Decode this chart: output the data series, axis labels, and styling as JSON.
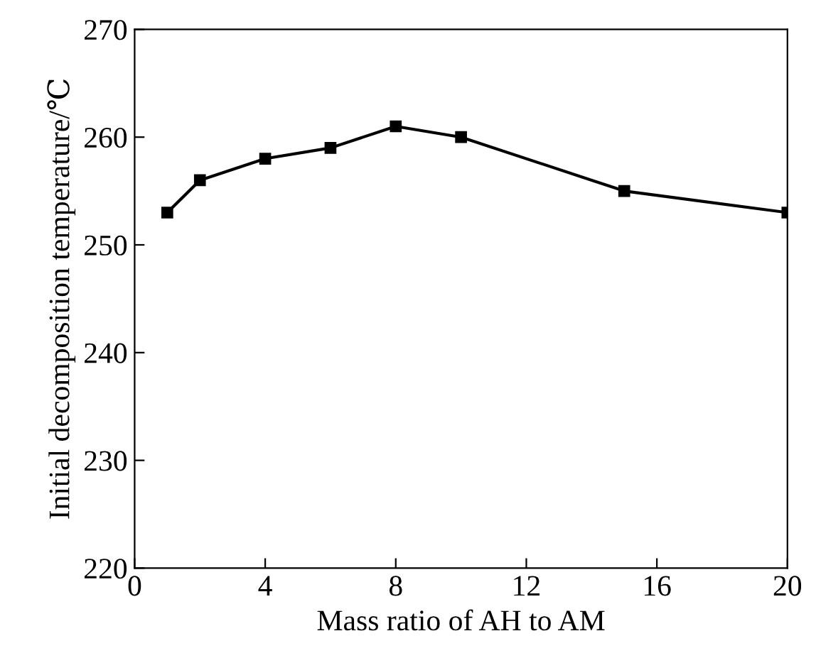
{
  "chart_data": {
    "type": "line",
    "xlabel": "Mass ratio of AH to AM",
    "ylabel": "Initial decomposition temperature/℃",
    "x": [
      1,
      2,
      4,
      6,
      8,
      10,
      15,
      20
    ],
    "series": [
      {
        "color": "#000000",
        "values": [
          253,
          256,
          258,
          259,
          261,
          260,
          255,
          253
        ]
      }
    ],
    "xlim": [
      0,
      20
    ],
    "xticks": [
      0,
      4,
      8,
      12,
      16,
      20
    ],
    "ylim": [
      220,
      270
    ],
    "yticks": [
      220,
      230,
      240,
      250,
      260,
      270
    ],
    "marker": "square",
    "line_style": "solid",
    "grid": false
  }
}
